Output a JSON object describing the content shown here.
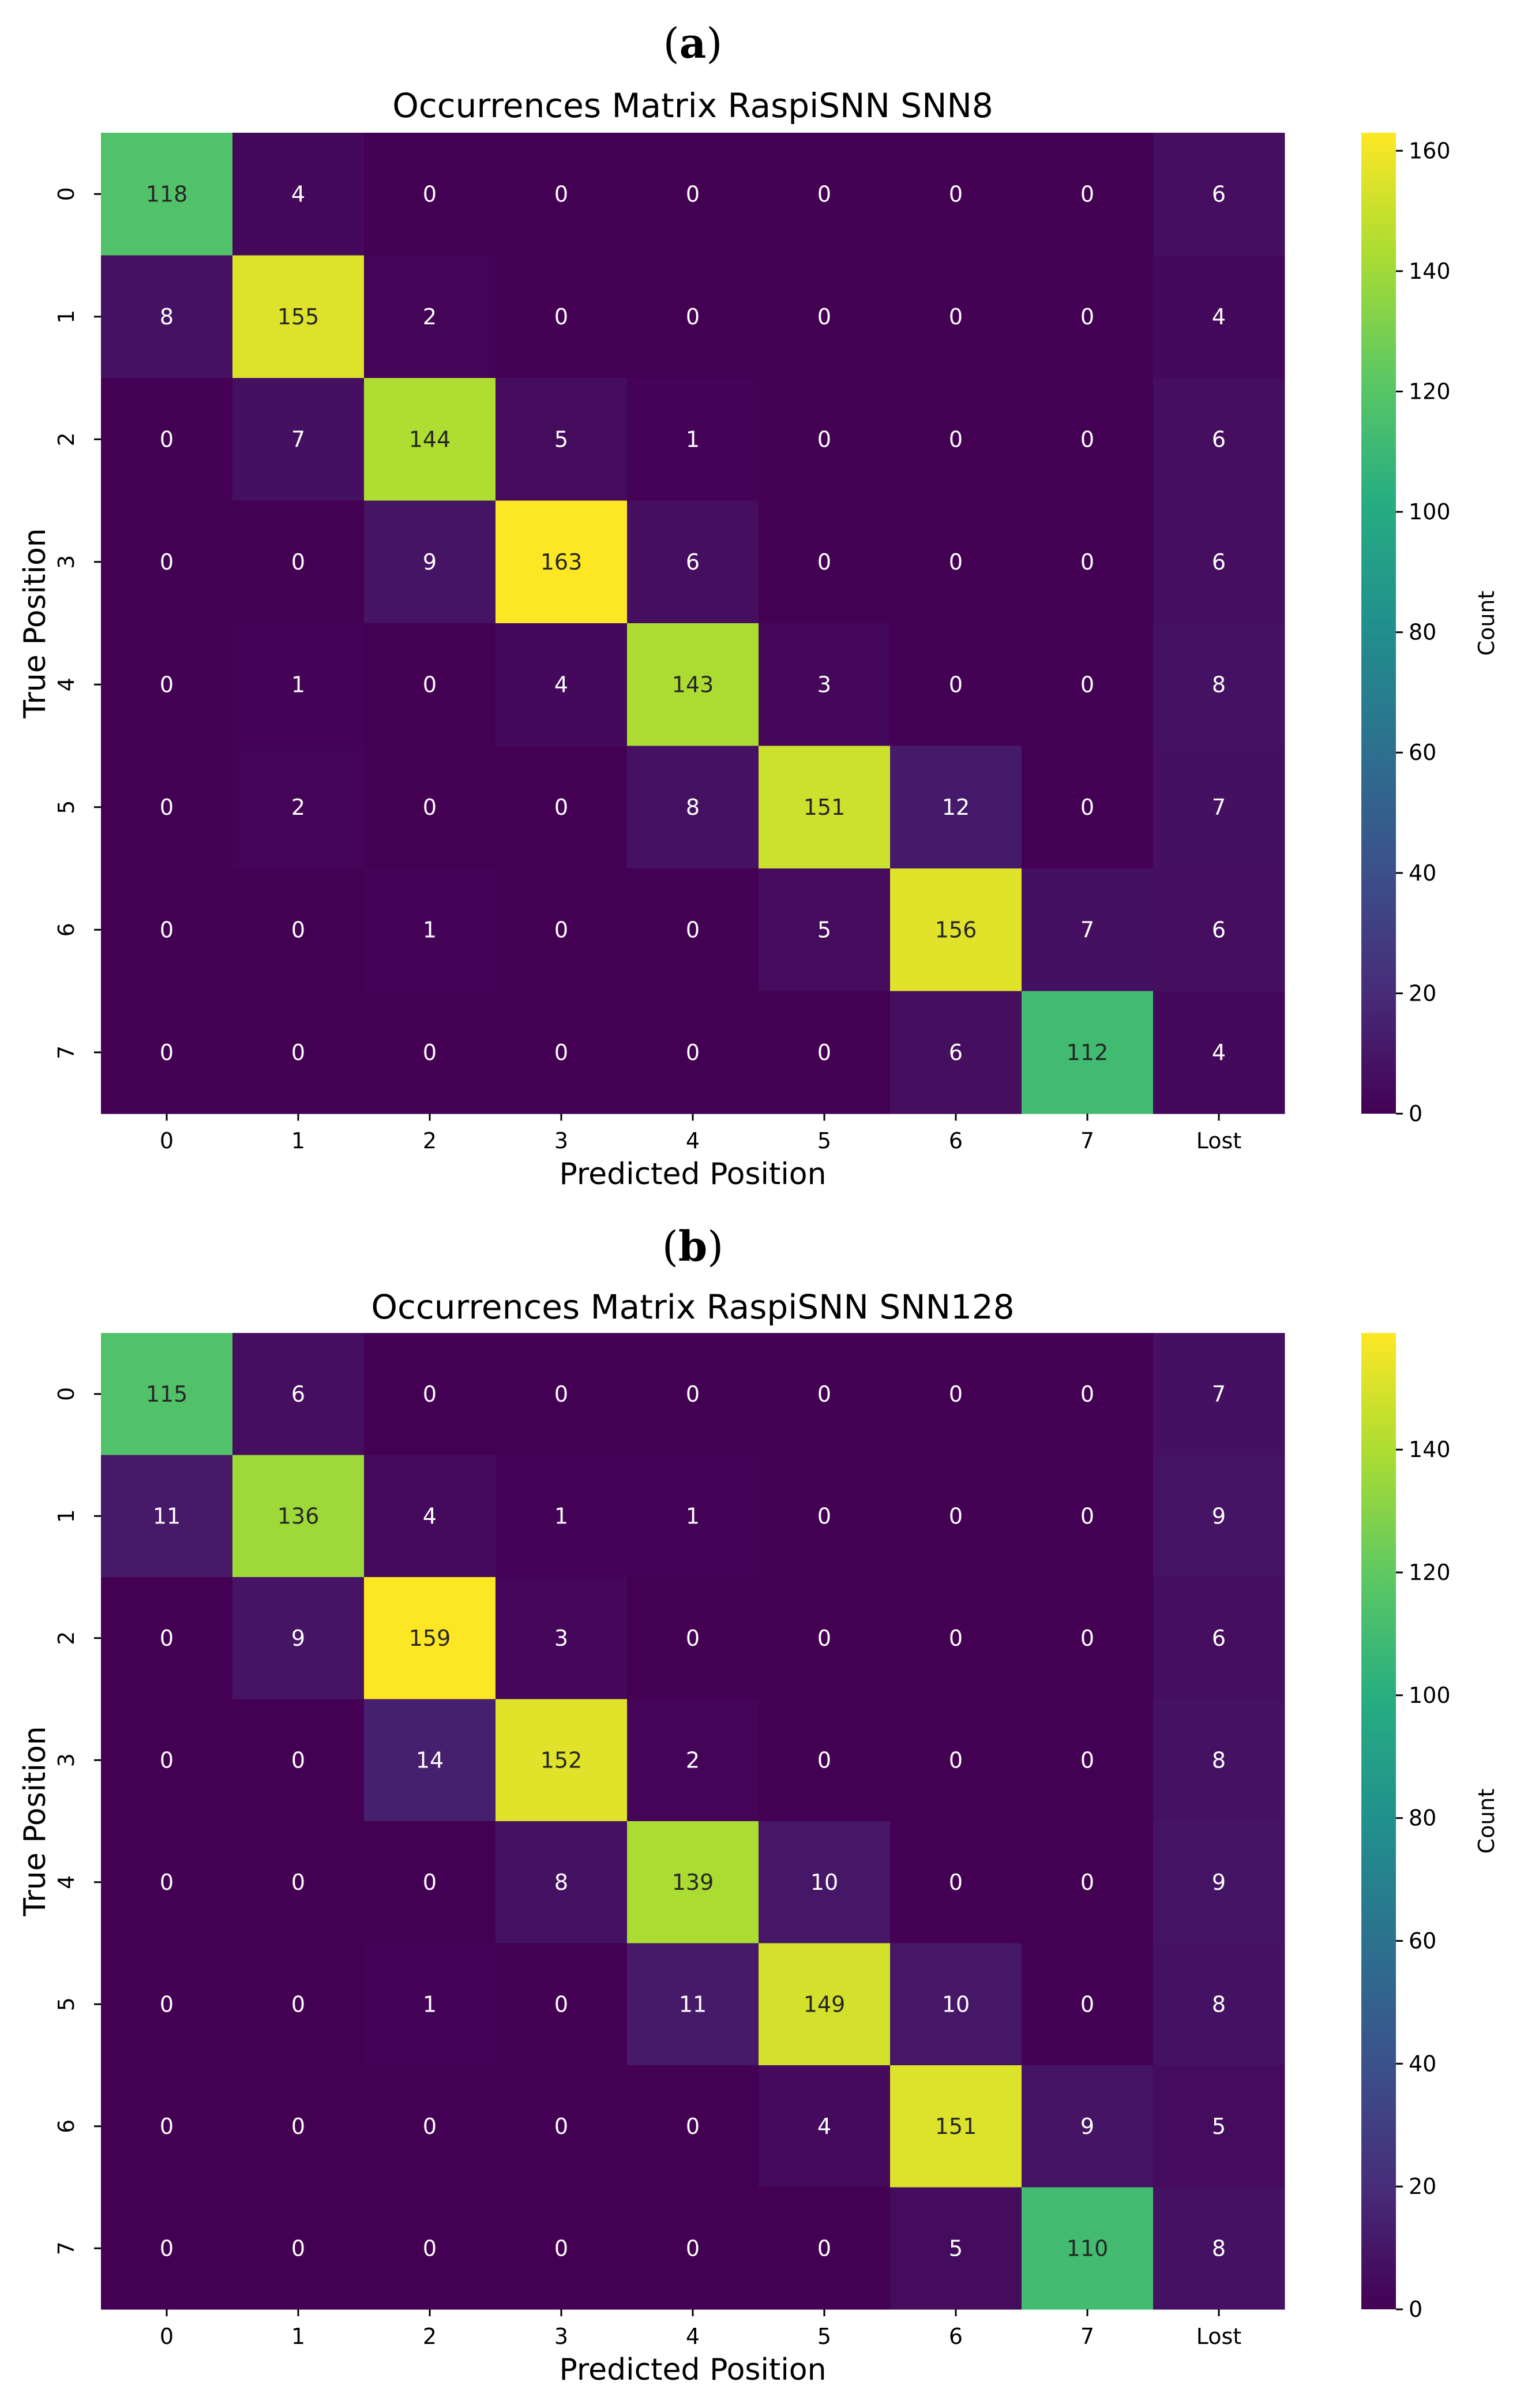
{
  "chart_data": [
    {
      "type": "heatmap",
      "panel_label": "a",
      "title": "Occurrences Matrix RaspiSNN SNN8",
      "xlabel": "Predicted Position",
      "ylabel": "True Position",
      "x_categories": [
        "0",
        "1",
        "2",
        "3",
        "4",
        "5",
        "6",
        "7",
        "Lost"
      ],
      "y_categories": [
        "0",
        "1",
        "2",
        "3",
        "4",
        "5",
        "6",
        "7"
      ],
      "values": [
        [
          118,
          4,
          0,
          0,
          0,
          0,
          0,
          0,
          6
        ],
        [
          8,
          155,
          2,
          0,
          0,
          0,
          0,
          0,
          4
        ],
        [
          0,
          7,
          144,
          5,
          1,
          0,
          0,
          0,
          6
        ],
        [
          0,
          0,
          9,
          163,
          6,
          0,
          0,
          0,
          6
        ],
        [
          0,
          1,
          0,
          4,
          143,
          3,
          0,
          0,
          8
        ],
        [
          0,
          2,
          0,
          0,
          8,
          151,
          12,
          0,
          7
        ],
        [
          0,
          0,
          1,
          0,
          0,
          5,
          156,
          7,
          6
        ],
        [
          0,
          0,
          0,
          0,
          0,
          0,
          6,
          112,
          4
        ]
      ],
      "colorbar": {
        "label": "Count",
        "colormap": "viridis",
        "range": [
          0,
          163
        ],
        "ticks": [
          0,
          20,
          40,
          60,
          80,
          100,
          120,
          140,
          160
        ]
      }
    },
    {
      "type": "heatmap",
      "panel_label": "b",
      "title": "Occurrences Matrix RaspiSNN SNN128",
      "xlabel": "Predicted Position",
      "ylabel": "True Position",
      "x_categories": [
        "0",
        "1",
        "2",
        "3",
        "4",
        "5",
        "6",
        "7",
        "Lost"
      ],
      "y_categories": [
        "0",
        "1",
        "2",
        "3",
        "4",
        "5",
        "6",
        "7"
      ],
      "values": [
        [
          115,
          6,
          0,
          0,
          0,
          0,
          0,
          0,
          7
        ],
        [
          11,
          136,
          4,
          1,
          1,
          0,
          0,
          0,
          9
        ],
        [
          0,
          9,
          159,
          3,
          0,
          0,
          0,
          0,
          6
        ],
        [
          0,
          0,
          14,
          152,
          2,
          0,
          0,
          0,
          8
        ],
        [
          0,
          0,
          0,
          8,
          139,
          10,
          0,
          0,
          9
        ],
        [
          0,
          0,
          1,
          0,
          11,
          149,
          10,
          0,
          8
        ],
        [
          0,
          0,
          0,
          0,
          0,
          4,
          151,
          9,
          5
        ],
        [
          0,
          0,
          0,
          0,
          0,
          0,
          5,
          110,
          8
        ]
      ],
      "colorbar": {
        "label": "Count",
        "colormap": "viridis",
        "range": [
          0,
          159
        ],
        "ticks": [
          0,
          20,
          40,
          60,
          80,
          100,
          120,
          140
        ]
      }
    }
  ]
}
